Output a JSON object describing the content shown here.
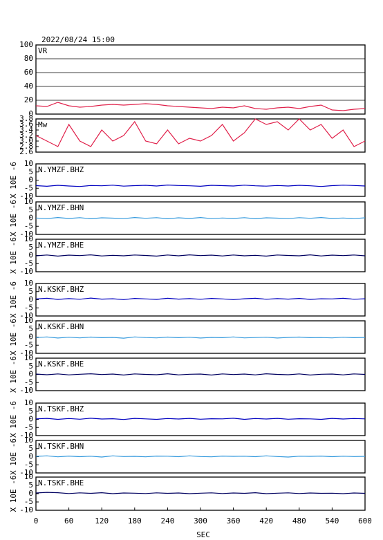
{
  "chart_data": [
    {
      "type": "line",
      "title": "2022/08/24 15:00",
      "xlim": [
        0,
        600
      ],
      "ylim": [
        0,
        100
      ],
      "yticks": [
        0,
        20,
        40,
        60,
        80,
        100
      ],
      "grid": true,
      "x": [
        0,
        20,
        40,
        60,
        80,
        100,
        120,
        140,
        160,
        180,
        200,
        220,
        240,
        260,
        280,
        300,
        320,
        340,
        360,
        380,
        400,
        420,
        440,
        460,
        480,
        500,
        520,
        540,
        560,
        580,
        600
      ],
      "series": [
        {
          "name": "VR",
          "color": "#e0204a",
          "values": [
            12,
            11,
            17,
            12,
            10,
            11,
            13,
            14,
            13,
            14,
            15,
            14,
            12,
            11,
            10,
            9,
            8,
            10,
            9,
            12,
            8,
            7,
            9,
            10,
            8,
            11,
            13,
            6,
            5,
            7,
            8
          ]
        }
      ]
    },
    {
      "type": "line",
      "xlim": [
        0,
        600
      ],
      "ylim": [
        2.6,
        3.8
      ],
      "yticks": [
        2.6,
        2.8,
        {
          "value": 3,
          "label": "3.0"
        },
        3.2,
        3.4,
        3.6,
        3.8
      ],
      "grid": false,
      "x": [
        0,
        20,
        40,
        60,
        80,
        100,
        120,
        140,
        160,
        180,
        200,
        220,
        240,
        260,
        280,
        300,
        320,
        340,
        360,
        380,
        400,
        420,
        440,
        460,
        480,
        500,
        520,
        540,
        560,
        580,
        600
      ],
      "series": [
        {
          "name": "Mw",
          "color": "#e0204a",
          "values": [
            3.2,
            3.0,
            2.8,
            3.6,
            3.0,
            2.8,
            3.4,
            3.0,
            3.2,
            3.7,
            3.0,
            2.9,
            3.4,
            2.9,
            3.1,
            3.0,
            3.2,
            3.6,
            3.0,
            3.3,
            3.8,
            3.6,
            3.7,
            3.4,
            3.8,
            3.4,
            3.6,
            3.1,
            3.4,
            2.8,
            3.0
          ]
        }
      ]
    },
    {
      "type": "line",
      "xlim": [
        0,
        600
      ],
      "ylim": [
        -10,
        10
      ],
      "yticks": [
        -10,
        -5,
        0,
        5,
        10
      ],
      "grid": false,
      "ylabel": "X 10E -6",
      "x": [
        0,
        20,
        40,
        60,
        80,
        100,
        120,
        140,
        160,
        180,
        200,
        220,
        240,
        260,
        280,
        300,
        320,
        340,
        360,
        380,
        400,
        420,
        440,
        460,
        480,
        500,
        520,
        540,
        560,
        580,
        600
      ],
      "series": [
        {
          "name": "N.YMZF.BHZ",
          "color": "#0000c0",
          "values": [
            -3.4,
            -3.8,
            -3.2,
            -3.6,
            -3.9,
            -3.3,
            -3.5,
            -3.1,
            -3.7,
            -3.4,
            -3.2,
            -3.6,
            -3.0,
            -3.3,
            -3.5,
            -3.8,
            -3.2,
            -3.4,
            -3.6,
            -3.1,
            -3.5,
            -3.7,
            -3.3,
            -3.6,
            -3.2,
            -3.5,
            -3.9,
            -3.4,
            -3.1,
            -3.3,
            -3.6
          ]
        }
      ]
    },
    {
      "type": "line",
      "xlim": [
        0,
        600
      ],
      "ylim": [
        -10,
        10
      ],
      "yticks": [
        -10,
        -5,
        0,
        5,
        10
      ],
      "grid": false,
      "ylabel": "X 10E -6",
      "x": [
        0,
        20,
        40,
        60,
        80,
        100,
        120,
        140,
        160,
        180,
        200,
        220,
        240,
        260,
        280,
        300,
        320,
        340,
        360,
        380,
        400,
        420,
        440,
        460,
        480,
        500,
        520,
        540,
        560,
        580,
        600
      ],
      "series": [
        {
          "name": "N.YMZF.BHN",
          "color": "#3399dd",
          "values": [
            0.1,
            -0.3,
            0.4,
            -0.2,
            0.3,
            -0.4,
            0.2,
            0.0,
            -0.3,
            0.4,
            -0.1,
            0.3,
            -0.4,
            0.2,
            -0.2,
            0.4,
            -0.3,
            0.1,
            -0.2,
            0.3,
            -0.4,
            0.2,
            0.0,
            -0.3,
            0.3,
            -0.1,
            0.4,
            -0.2,
            0.1,
            -0.3,
            0.2
          ]
        }
      ]
    },
    {
      "type": "line",
      "xlim": [
        0,
        600
      ],
      "ylim": [
        -10,
        10
      ],
      "yticks": [
        -10,
        -5,
        0,
        5,
        10
      ],
      "grid": false,
      "ylabel": "X 10E -6",
      "x": [
        0,
        20,
        40,
        60,
        80,
        100,
        120,
        140,
        160,
        180,
        200,
        220,
        240,
        260,
        280,
        300,
        320,
        340,
        360,
        380,
        400,
        420,
        440,
        460,
        480,
        500,
        520,
        540,
        560,
        580,
        600
      ],
      "series": [
        {
          "name": "N.YMZF.BHE",
          "color": "#000060",
          "values": [
            -0.2,
            0.3,
            -0.4,
            0.2,
            -0.1,
            0.4,
            -0.3,
            0.1,
            -0.2,
            0.3,
            0.0,
            -0.4,
            0.3,
            -0.2,
            0.4,
            -0.1,
            0.2,
            -0.3,
            0.3,
            -0.2,
            0.1,
            -0.4,
            0.3,
            0.0,
            -0.2,
            0.4,
            -0.3,
            0.2,
            -0.1,
            0.3,
            -0.2
          ]
        }
      ]
    },
    {
      "type": "line",
      "xlim": [
        0,
        600
      ],
      "ylim": [
        -10,
        10
      ],
      "yticks": [
        -10,
        -5,
        0,
        5,
        10
      ],
      "grid": false,
      "ylabel": "X 10E -6",
      "x": [
        0,
        20,
        40,
        60,
        80,
        100,
        120,
        140,
        160,
        180,
        200,
        220,
        240,
        260,
        280,
        300,
        320,
        340,
        360,
        380,
        400,
        420,
        440,
        460,
        480,
        500,
        520,
        540,
        560,
        580,
        600
      ],
      "series": [
        {
          "name": "N.KSKF.BHZ",
          "color": "#0000c0",
          "values": [
            0.5,
            0.9,
            0.2,
            0.7,
            0.3,
            1.0,
            0.4,
            0.6,
            0.1,
            0.8,
            0.5,
            0.2,
            0.9,
            0.4,
            0.7,
            0.3,
            0.8,
            0.5,
            0.1,
            0.6,
            0.9,
            0.3,
            0.7,
            0.4,
            0.8,
            0.2,
            0.6,
            0.5,
            0.9,
            0.3,
            0.6
          ]
        }
      ]
    },
    {
      "type": "line",
      "xlim": [
        0,
        600
      ],
      "ylim": [
        -10,
        10
      ],
      "yticks": [
        -10,
        -5,
        0,
        5,
        10
      ],
      "grid": false,
      "ylabel": "X 10E -6",
      "x": [
        0,
        20,
        40,
        60,
        80,
        100,
        120,
        140,
        160,
        180,
        200,
        220,
        240,
        260,
        280,
        300,
        320,
        340,
        360,
        380,
        400,
        420,
        440,
        460,
        480,
        500,
        520,
        540,
        560,
        580,
        600
      ],
      "series": [
        {
          "name": "N.KSKF.BHN",
          "color": "#3399dd",
          "values": [
            -0.3,
            0.1,
            -0.6,
            -0.1,
            -0.5,
            0.0,
            -0.4,
            -0.2,
            -0.7,
            0.1,
            -0.3,
            -0.5,
            0.0,
            -0.4,
            -0.1,
            -0.6,
            -0.2,
            -0.4,
            0.1,
            -0.5,
            -0.3,
            -0.1,
            -0.6,
            -0.2,
            0.0,
            -0.4,
            -0.3,
            -0.5,
            -0.1,
            -0.4,
            -0.2
          ]
        }
      ]
    },
    {
      "type": "line",
      "xlim": [
        0,
        600
      ],
      "ylim": [
        -10,
        10
      ],
      "yticks": [
        -10,
        -5,
        0,
        5,
        10
      ],
      "grid": false,
      "ylabel": "X 10E -6",
      "x": [
        0,
        20,
        40,
        60,
        80,
        100,
        120,
        140,
        160,
        180,
        200,
        220,
        240,
        260,
        280,
        300,
        320,
        340,
        360,
        380,
        400,
        420,
        440,
        460,
        480,
        500,
        520,
        540,
        560,
        580,
        600
      ],
      "series": [
        {
          "name": "N.KSKF.BHE",
          "color": "#000060",
          "values": [
            0.2,
            -0.2,
            0.3,
            -0.3,
            0.1,
            0.4,
            -0.1,
            0.2,
            -0.4,
            0.3,
            0.0,
            -0.2,
            0.4,
            -0.3,
            0.1,
            0.2,
            -0.4,
            0.3,
            -0.1,
            0.2,
            -0.3,
            0.4,
            0.0,
            -0.2,
            0.3,
            -0.4,
            0.1,
            0.2,
            -0.3,
            0.3,
            0.0
          ]
        }
      ]
    },
    {
      "type": "line",
      "xlim": [
        0,
        600
      ],
      "ylim": [
        -10,
        10
      ],
      "yticks": [
        -10,
        -5,
        0,
        5,
        10
      ],
      "grid": false,
      "ylabel": "X 10E -6",
      "x": [
        0,
        20,
        40,
        60,
        80,
        100,
        120,
        140,
        160,
        180,
        200,
        220,
        240,
        260,
        280,
        300,
        320,
        340,
        360,
        380,
        400,
        420,
        440,
        460,
        480,
        500,
        520,
        540,
        560,
        580,
        600
      ],
      "series": [
        {
          "name": "N.TSKF.BHZ",
          "color": "#0000c0",
          "values": [
            0.3,
            0.6,
            0.0,
            0.5,
            0.1,
            0.7,
            0.2,
            0.4,
            -0.1,
            0.6,
            0.3,
            0.0,
            0.5,
            0.2,
            0.6,
            0.1,
            0.4,
            0.3,
            0.7,
            0.0,
            0.5,
            0.2,
            0.6,
            0.1,
            0.4,
            0.3,
            0.0,
            0.6,
            0.2,
            0.5,
            0.3
          ]
        }
      ]
    },
    {
      "type": "line",
      "xlim": [
        0,
        600
      ],
      "ylim": [
        -10,
        10
      ],
      "yticks": [
        -10,
        -5,
        0,
        5,
        10
      ],
      "grid": false,
      "ylabel": "X 10E -6",
      "x": [
        0,
        20,
        40,
        60,
        80,
        100,
        120,
        140,
        160,
        180,
        200,
        220,
        240,
        260,
        280,
        300,
        320,
        340,
        360,
        380,
        400,
        420,
        440,
        460,
        480,
        500,
        520,
        540,
        560,
        580,
        600
      ],
      "series": [
        {
          "name": "N.TSKF.BHN",
          "color": "#3399dd",
          "values": [
            0.2,
            0.5,
            -0.1,
            0.4,
            0.0,
            0.3,
            -0.2,
            0.5,
            0.1,
            0.2,
            -0.1,
            0.4,
            0.3,
            0.0,
            0.5,
            0.1,
            -0.1,
            0.4,
            0.2,
            0.3,
            0.0,
            0.5,
            0.1,
            -0.2,
            0.3,
            0.2,
            0.4,
            0.0,
            0.3,
            0.1,
            0.2
          ]
        }
      ]
    },
    {
      "type": "line",
      "xlim": [
        0,
        600
      ],
      "ylim": [
        -10,
        10
      ],
      "yticks": [
        -10,
        -5,
        0,
        5,
        10
      ],
      "grid": false,
      "ylabel": "X 10E -6",
      "xlabel": "SEC",
      "xticks": [
        0,
        60,
        120,
        180,
        240,
        300,
        360,
        420,
        480,
        540,
        600
      ],
      "x": [
        0,
        20,
        40,
        60,
        80,
        100,
        120,
        140,
        160,
        180,
        200,
        220,
        240,
        260,
        280,
        300,
        320,
        340,
        360,
        380,
        400,
        420,
        440,
        460,
        480,
        500,
        520,
        540,
        560,
        580,
        600
      ],
      "series": [
        {
          "name": "N.TSKF.BHE",
          "color": "#000060",
          "values": [
            0.4,
            0.8,
            0.6,
            0.1,
            0.5,
            0.2,
            0.6,
            0.0,
            0.4,
            0.3,
            0.1,
            0.5,
            0.2,
            0.4,
            0.0,
            0.3,
            0.5,
            0.1,
            0.4,
            0.2,
            0.6,
            0.0,
            0.3,
            0.5,
            0.1,
            0.4,
            0.2,
            0.3,
            0.0,
            0.4,
            0.2
          ]
        }
      ]
    }
  ]
}
